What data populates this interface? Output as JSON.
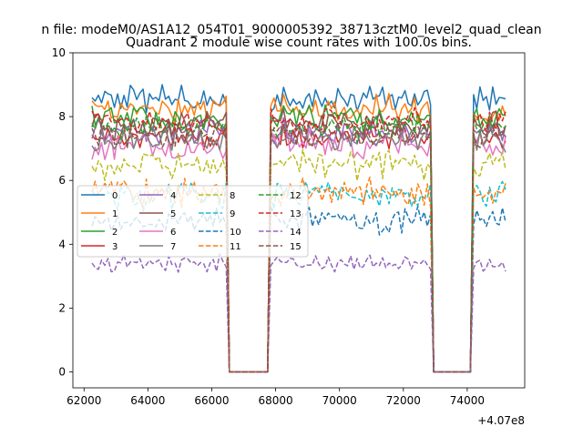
{
  "page": {
    "suptitle": "n file: modeM0/AS1A12_054T01_9000005392_38713cztM0_level2_quad_clean"
  },
  "chart_data": {
    "type": "line",
    "title": "Quadrant 2 module wise count rates with 100.0s bins.",
    "xlabel": "",
    "ylabel": "",
    "x_offset_label": "+4.07e8",
    "xlim": [
      61650,
      75800
    ],
    "ylim": [
      -0.5,
      10.0
    ],
    "x_ticks": [
      62000,
      64000,
      66000,
      68000,
      70000,
      72000,
      74000
    ],
    "x_tick_labels": [
      "62000",
      "64000",
      "66000",
      "68000",
      "70000",
      "72000",
      "74000"
    ],
    "y_ticks": [
      0,
      2,
      4,
      6,
      8,
      10
    ],
    "y_tick_labels": [
      "0",
      "2",
      "4",
      "6",
      "8",
      "10"
    ],
    "grid": false,
    "legend_position": "center-left",
    "segments": [
      {
        "start": 62250,
        "end": 66450
      },
      {
        "start": 67850,
        "end": 72850
      },
      {
        "start": 74200,
        "end": 75250
      }
    ],
    "gaps": [
      {
        "drop_start": 66450,
        "zero_start": 66550,
        "zero_end": 67750,
        "rise_end": 67850
      },
      {
        "drop_start": 72850,
        "zero_start": 72950,
        "zero_end": 74100,
        "rise_end": 74200
      }
    ],
    "bin_width": 100,
    "series": [
      {
        "name": "0",
        "color": "#1f77b4",
        "dash": "solid",
        "mean": 8.55,
        "noise": 0.3
      },
      {
        "name": "1",
        "color": "#ff7f0e",
        "dash": "solid",
        "mean": 8.25,
        "noise": 0.35
      },
      {
        "name": "2",
        "color": "#2ca02c",
        "dash": "solid",
        "mean": 7.95,
        "noise": 0.3
      },
      {
        "name": "3",
        "color": "#d62728",
        "dash": "solid",
        "mean": 7.35,
        "noise": 0.3
      },
      {
        "name": "4",
        "color": "#9467bd",
        "dash": "solid",
        "mean": 7.55,
        "noise": 0.3
      },
      {
        "name": "5",
        "color": "#8c564b",
        "dash": "solid",
        "mean": 7.75,
        "noise": 0.35
      },
      {
        "name": "6",
        "color": "#e377c2",
        "dash": "solid",
        "mean": 7.1,
        "noise": 0.35
      },
      {
        "name": "7",
        "color": "#7f7f7f",
        "dash": "solid",
        "mean": 7.3,
        "noise": 0.3
      },
      {
        "name": "8",
        "color": "#bcbd22",
        "dash": "dashed",
        "mean": 6.5,
        "noise": 0.35
      },
      {
        "name": "9",
        "color": "#17becf",
        "dash": "dashed",
        "mean": 5.55,
        "noise": 0.35
      },
      {
        "name": "10",
        "color": "#1f77b4",
        "dash": "dashed",
        "mean": 4.75,
        "noise": 0.3
      },
      {
        "name": "11",
        "color": "#ff7f0e",
        "dash": "dashed",
        "mean": 5.65,
        "noise": 0.35
      },
      {
        "name": "12",
        "color": "#2ca02c",
        "dash": "dashed",
        "mean": 7.65,
        "noise": 0.3
      },
      {
        "name": "13",
        "color": "#d62728",
        "dash": "dashed",
        "mean": 7.85,
        "noise": 0.3
      },
      {
        "name": "14",
        "color": "#9467bd",
        "dash": "dashed",
        "mean": 3.4,
        "noise": 0.2
      },
      {
        "name": "15",
        "color": "#8c564b",
        "dash": "dashed",
        "mean": 7.45,
        "noise": 0.3
      }
    ]
  }
}
